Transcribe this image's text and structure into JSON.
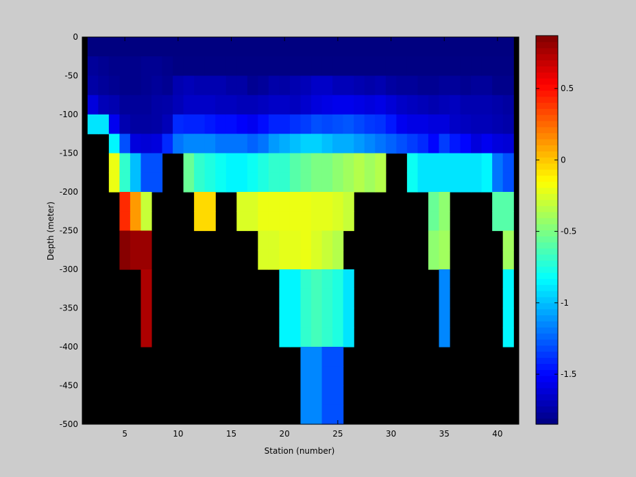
{
  "chart_data": {
    "type": "heatmap",
    "title": "",
    "xlabel": "Station (number)",
    "ylabel": "Depth (meter)",
    "xlim": [
      1,
      42
    ],
    "ylim": [
      -500,
      0
    ],
    "x_ticks": [
      "5",
      "10",
      "15",
      "20",
      "25",
      "30",
      "35",
      "40"
    ],
    "y_ticks": [
      "0",
      "-50",
      "-100",
      "-150",
      "-200",
      "-250",
      "-300",
      "-350",
      "-400",
      "-450",
      "-500"
    ],
    "colorbar": {
      "colormap": "jet",
      "clim": [
        -1.85,
        0.87
      ],
      "ticks": [
        "0.5",
        "0",
        "-0.5",
        "-1",
        "-1.5"
      ]
    },
    "stations": [
      2,
      3,
      4,
      5,
      6,
      7,
      8,
      9,
      10,
      11,
      12,
      13,
      14,
      15,
      16,
      17,
      18,
      19,
      20,
      21,
      22,
      23,
      24,
      25,
      26,
      27,
      28,
      29,
      30,
      31,
      32,
      33,
      34,
      35,
      36,
      37,
      38,
      39,
      40,
      41
    ],
    "depths": [
      0,
      -25,
      -50,
      -75,
      -100,
      -125,
      -150,
      -175,
      -200,
      -225,
      -250,
      -275,
      -300,
      -325,
      -350,
      -375,
      -400,
      -425,
      -450,
      -475
    ],
    "no_data_color": "#000000",
    "values": [
      [
        -1.85,
        -1.85,
        -1.85,
        -1.85,
        -1.85,
        -1.85,
        -1.85,
        -1.85,
        -1.85,
        -1.85,
        -1.85,
        -1.85,
        -1.85,
        -1.85,
        -1.85,
        -1.85,
        -1.85,
        -1.85,
        -1.85,
        -1.85,
        -1.85,
        -1.85,
        -1.85,
        -1.85,
        -1.85,
        -1.85,
        -1.85,
        -1.85,
        -1.85,
        -1.85,
        -1.85,
        -1.85,
        -1.85,
        -1.85,
        -1.85,
        -1.85,
        -1.85,
        -1.85,
        -1.85,
        -1.85
      ],
      [
        -1.78,
        -1.8,
        -1.82,
        -1.82,
        -1.82,
        -1.8,
        -1.8,
        -1.82,
        -1.84,
        -1.84,
        -1.84,
        -1.84,
        -1.84,
        -1.84,
        -1.84,
        -1.84,
        -1.84,
        -1.84,
        -1.84,
        -1.84,
        -1.84,
        -1.84,
        -1.84,
        -1.84,
        -1.84,
        -1.84,
        -1.84,
        -1.84,
        -1.84,
        -1.84,
        -1.84,
        -1.84,
        -1.84,
        -1.84,
        -1.84,
        -1.84,
        -1.84,
        -1.84,
        -1.84,
        -1.84
      ],
      [
        -1.75,
        -1.78,
        -1.8,
        -1.82,
        -1.82,
        -1.8,
        -1.78,
        -1.8,
        -1.72,
        -1.7,
        -1.72,
        -1.72,
        -1.72,
        -1.75,
        -1.75,
        -1.8,
        -1.78,
        -1.74,
        -1.75,
        -1.72,
        -1.7,
        -1.66,
        -1.66,
        -1.7,
        -1.7,
        -1.72,
        -1.74,
        -1.72,
        -1.76,
        -1.78,
        -1.78,
        -1.8,
        -1.8,
        -1.78,
        -1.78,
        -1.8,
        -1.78,
        -1.78,
        -1.82,
        -1.82
      ],
      [
        -1.6,
        -1.7,
        -1.72,
        -1.78,
        -1.78,
        -1.78,
        -1.75,
        -1.74,
        -1.7,
        -1.66,
        -1.66,
        -1.66,
        -1.68,
        -1.68,
        -1.7,
        -1.7,
        -1.68,
        -1.66,
        -1.66,
        -1.68,
        -1.64,
        -1.6,
        -1.58,
        -1.56,
        -1.56,
        -1.58,
        -1.6,
        -1.58,
        -1.62,
        -1.66,
        -1.68,
        -1.7,
        -1.72,
        -1.7,
        -1.68,
        -1.72,
        -1.72,
        -1.72,
        -1.74,
        -1.76
      ],
      [
        -0.9,
        -0.9,
        -1.55,
        -1.72,
        -1.76,
        -1.76,
        -1.75,
        -1.7,
        -1.4,
        -1.42,
        -1.42,
        -1.45,
        -1.48,
        -1.48,
        -1.52,
        -1.55,
        -1.48,
        -1.42,
        -1.42,
        -1.38,
        -1.35,
        -1.3,
        -1.32,
        -1.3,
        -1.28,
        -1.32,
        -1.36,
        -1.38,
        -1.45,
        -1.55,
        -1.58,
        -1.58,
        -1.6,
        -1.6,
        -1.66,
        -1.68,
        -1.7,
        -1.7,
        -1.72,
        -1.74
      ],
      [
        null,
        null,
        -0.85,
        -1.3,
        -1.6,
        -1.62,
        -1.6,
        -1.4,
        -1.2,
        -1.15,
        -1.15,
        -1.15,
        -1.2,
        -1.2,
        -1.2,
        -1.25,
        -1.2,
        -1.1,
        -1.05,
        -1.0,
        -0.95,
        -0.95,
        -1.0,
        -1.05,
        -1.05,
        -1.1,
        -1.15,
        -1.2,
        -1.25,
        -1.3,
        -1.35,
        -1.4,
        -1.5,
        -1.35,
        -1.45,
        -1.5,
        -1.6,
        -1.55,
        -1.6,
        -1.62
      ],
      [
        null,
        null,
        -0.2,
        -0.7,
        -1.0,
        -1.3,
        -1.3,
        null,
        null,
        -0.55,
        -0.7,
        -0.75,
        -0.8,
        -0.85,
        -0.85,
        -0.8,
        -0.75,
        -0.7,
        -0.7,
        -0.6,
        -0.55,
        -0.5,
        -0.5,
        -0.45,
        -0.4,
        -0.35,
        -0.4,
        -0.35,
        null,
        null,
        -0.8,
        -0.9,
        -0.9,
        -0.9,
        -0.9,
        -0.9,
        -0.9,
        -0.85,
        -1.2,
        -1.3
      ],
      [
        null,
        null,
        -0.2,
        -0.7,
        -1.0,
        -1.3,
        -1.3,
        null,
        null,
        -0.55,
        -0.7,
        -0.75,
        -0.8,
        -0.85,
        -0.85,
        -0.8,
        -0.75,
        -0.7,
        -0.7,
        -0.6,
        -0.55,
        -0.5,
        -0.5,
        -0.45,
        -0.4,
        -0.35,
        -0.4,
        -0.35,
        null,
        null,
        -0.8,
        -0.9,
        -0.9,
        -0.9,
        -0.9,
        -0.9,
        -0.9,
        -0.85,
        -1.2,
        -1.3
      ],
      [
        null,
        null,
        null,
        0.42,
        0.12,
        -0.3,
        null,
        null,
        null,
        null,
        -0.05,
        -0.05,
        null,
        null,
        -0.25,
        -0.25,
        -0.2,
        -0.2,
        -0.2,
        -0.2,
        -0.2,
        -0.22,
        -0.22,
        -0.25,
        -0.3,
        null,
        null,
        null,
        null,
        null,
        null,
        null,
        -0.55,
        -0.45,
        null,
        null,
        null,
        null,
        -0.6,
        -0.6
      ],
      [
        null,
        null,
        null,
        0.42,
        0.12,
        -0.3,
        null,
        null,
        null,
        null,
        -0.05,
        -0.05,
        null,
        null,
        -0.25,
        -0.25,
        -0.2,
        -0.2,
        -0.2,
        -0.2,
        -0.2,
        -0.22,
        -0.22,
        -0.25,
        -0.3,
        null,
        null,
        null,
        null,
        null,
        null,
        null,
        -0.55,
        -0.45,
        null,
        null,
        null,
        null,
        -0.6,
        -0.6
      ],
      [
        null,
        null,
        null,
        0.85,
        0.8,
        0.8,
        null,
        null,
        null,
        null,
        null,
        null,
        null,
        null,
        null,
        null,
        -0.25,
        -0.25,
        -0.22,
        -0.22,
        -0.2,
        -0.25,
        -0.3,
        -0.35,
        null,
        null,
        null,
        null,
        null,
        null,
        null,
        null,
        -0.45,
        -0.4,
        null,
        null,
        null,
        null,
        null,
        -0.4
      ],
      [
        null,
        null,
        null,
        0.85,
        0.8,
        0.8,
        null,
        null,
        null,
        null,
        null,
        null,
        null,
        null,
        null,
        null,
        -0.25,
        -0.25,
        -0.22,
        -0.22,
        -0.2,
        -0.25,
        -0.3,
        -0.35,
        null,
        null,
        null,
        null,
        null,
        null,
        null,
        null,
        -0.45,
        -0.4,
        null,
        null,
        null,
        null,
        null,
        -0.4
      ],
      [
        null,
        null,
        null,
        null,
        null,
        0.75,
        null,
        null,
        null,
        null,
        null,
        null,
        null,
        null,
        null,
        null,
        null,
        null,
        -0.85,
        -0.85,
        -0.7,
        -0.65,
        -0.7,
        -0.75,
        -0.9,
        null,
        null,
        null,
        null,
        null,
        null,
        null,
        null,
        -1.15,
        null,
        null,
        null,
        null,
        null,
        -0.85
      ],
      [
        null,
        null,
        null,
        null,
        null,
        0.75,
        null,
        null,
        null,
        null,
        null,
        null,
        null,
        null,
        null,
        null,
        null,
        null,
        -0.85,
        -0.85,
        -0.7,
        -0.65,
        -0.7,
        -0.75,
        -0.9,
        null,
        null,
        null,
        null,
        null,
        null,
        null,
        null,
        -1.15,
        null,
        null,
        null,
        null,
        null,
        -0.85
      ],
      [
        null,
        null,
        null,
        null,
        null,
        0.75,
        null,
        null,
        null,
        null,
        null,
        null,
        null,
        null,
        null,
        null,
        null,
        null,
        -0.85,
        -0.85,
        -0.7,
        -0.65,
        -0.7,
        -0.75,
        -0.9,
        null,
        null,
        null,
        null,
        null,
        null,
        null,
        null,
        -1.15,
        null,
        null,
        null,
        null,
        null,
        -0.85
      ],
      [
        null,
        null,
        null,
        null,
        null,
        0.75,
        null,
        null,
        null,
        null,
        null,
        null,
        null,
        null,
        null,
        null,
        null,
        null,
        -0.85,
        -0.85,
        -0.7,
        -0.65,
        -0.7,
        -0.75,
        -0.9,
        null,
        null,
        null,
        null,
        null,
        null,
        null,
        null,
        -1.15,
        null,
        null,
        null,
        null,
        null,
        -0.85
      ],
      [
        null,
        null,
        null,
        null,
        null,
        null,
        null,
        null,
        null,
        null,
        null,
        null,
        null,
        null,
        null,
        null,
        null,
        null,
        null,
        null,
        -1.15,
        -1.15,
        -1.3,
        -1.3,
        null,
        null,
        null,
        null,
        null,
        null,
        null,
        null,
        null,
        null,
        null,
        null,
        null,
        null,
        null,
        null
      ],
      [
        null,
        null,
        null,
        null,
        null,
        null,
        null,
        null,
        null,
        null,
        null,
        null,
        null,
        null,
        null,
        null,
        null,
        null,
        null,
        null,
        -1.15,
        -1.15,
        -1.3,
        -1.3,
        null,
        null,
        null,
        null,
        null,
        null,
        null,
        null,
        null,
        null,
        null,
        null,
        null,
        null,
        null,
        null
      ],
      [
        null,
        null,
        null,
        null,
        null,
        null,
        null,
        null,
        null,
        null,
        null,
        null,
        null,
        null,
        null,
        null,
        null,
        null,
        null,
        null,
        -1.15,
        -1.15,
        -1.3,
        -1.3,
        null,
        null,
        null,
        null,
        null,
        null,
        null,
        null,
        null,
        null,
        null,
        null,
        null,
        null,
        null,
        null
      ],
      [
        null,
        null,
        null,
        null,
        null,
        null,
        null,
        null,
        null,
        null,
        null,
        null,
        null,
        null,
        null,
        null,
        null,
        null,
        null,
        null,
        -1.15,
        -1.15,
        -1.3,
        -1.3,
        null,
        null,
        null,
        null,
        null,
        null,
        null,
        null,
        null,
        null,
        null,
        null,
        null,
        null,
        null,
        null
      ]
    ]
  }
}
